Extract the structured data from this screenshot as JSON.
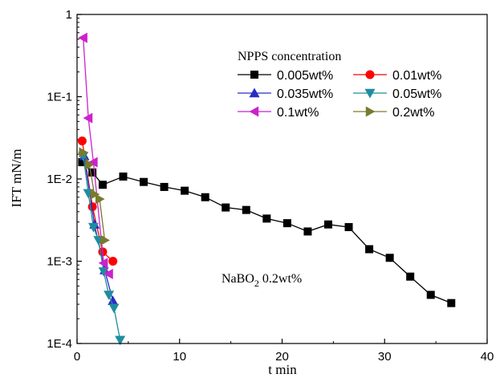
{
  "chart_data": {
    "type": "scatter",
    "xlabel": "t min",
    "ylabel": "IFT mN/m",
    "xlim": [
      0,
      40
    ],
    "ylim": [
      0.0001,
      1
    ],
    "yscale": "log",
    "x_ticks": [
      "0",
      "10",
      "20",
      "30",
      "40"
    ],
    "y_ticks": [
      "1E-4",
      "1E-3",
      "1E-2",
      "1E-1",
      "1"
    ],
    "legend_title": "NPPS concentration",
    "annotation": {
      "main": "NaBO",
      "subscript": "2",
      "rest": " 0.2wt%"
    },
    "legend_placement": "top-right",
    "series": [
      {
        "name": "0.005wt%",
        "color": "#000000",
        "marker": "square",
        "points": [
          [
            0.5,
            0.016
          ],
          [
            1.5,
            0.012
          ],
          [
            2.5,
            0.0085
          ],
          [
            4.5,
            0.0107
          ],
          [
            6.5,
            0.0092
          ],
          [
            8.5,
            0.008
          ],
          [
            10.5,
            0.0072
          ],
          [
            12.5,
            0.006
          ],
          [
            14.5,
            0.0045
          ],
          [
            16.5,
            0.0042
          ],
          [
            18.5,
            0.0033
          ],
          [
            20.5,
            0.0029
          ],
          [
            22.5,
            0.0023
          ],
          [
            24.5,
            0.0028
          ],
          [
            26.5,
            0.0026
          ],
          [
            28.5,
            0.0014
          ],
          [
            30.5,
            0.0011
          ],
          [
            32.5,
            0.00065
          ],
          [
            34.5,
            0.00039
          ],
          [
            36.5,
            0.00031
          ]
        ]
      },
      {
        "name": "0.01wt%",
        "color": "#ff0000",
        "marker": "circle",
        "points": [
          [
            0.5,
            0.029
          ],
          [
            1.5,
            0.0046
          ],
          [
            2.5,
            0.0013
          ],
          [
            3.5,
            0.001
          ]
        ]
      },
      {
        "name": "0.035wt%",
        "color": "#2b2bc8",
        "marker": "triangle-up",
        "points": [
          [
            0.7,
            0.019
          ],
          [
            1.7,
            0.0028
          ],
          [
            2.7,
            0.00078
          ],
          [
            3.5,
            0.00033
          ]
        ]
      },
      {
        "name": "0.05wt%",
        "color": "#1e8ca0",
        "marker": "triangle-down",
        "points": [
          [
            0.6,
            0.019
          ],
          [
            1.1,
            0.0067
          ],
          [
            1.6,
            0.0026
          ],
          [
            2.1,
            0.0018
          ],
          [
            2.6,
            0.00075
          ],
          [
            3.1,
            0.00039
          ],
          [
            3.6,
            0.00027
          ],
          [
            4.2,
            0.00011
          ]
        ]
      },
      {
        "name": "0.1wt%",
        "color": "#cc22cc",
        "marker": "triangle-left",
        "points": [
          [
            0.6,
            0.52
          ],
          [
            1.1,
            0.055
          ],
          [
            1.6,
            0.016
          ],
          [
            2.6,
            0.00095
          ],
          [
            3.1,
            0.0007
          ]
        ]
      },
      {
        "name": "0.2wt%",
        "color": "#7a7a2e",
        "marker": "triangle-right",
        "points": [
          [
            0.6,
            0.021
          ],
          [
            1.2,
            0.015
          ],
          [
            1.7,
            0.0065
          ],
          [
            2.2,
            0.0057
          ],
          [
            2.7,
            0.0018
          ]
        ]
      }
    ]
  }
}
